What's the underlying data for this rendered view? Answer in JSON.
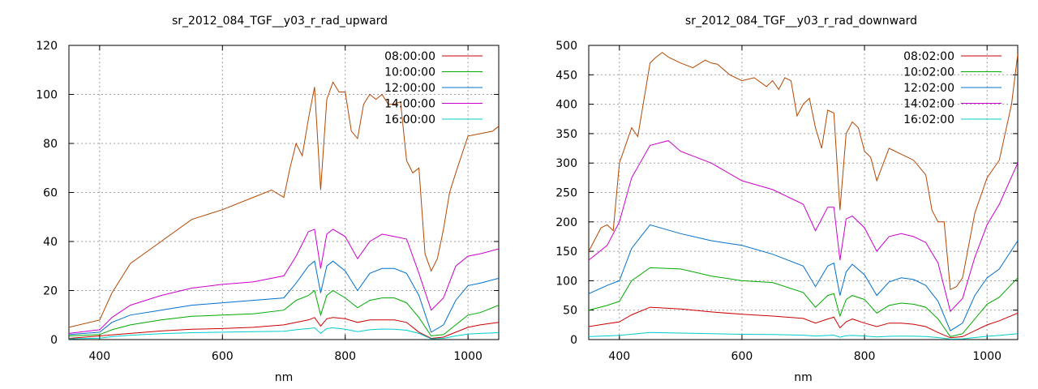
{
  "chart_data": [
    {
      "type": "line",
      "title": "sr_2012_084_TGF__y03_r_rad_upward",
      "xlabel": "nm",
      "ylabel": "",
      "xlim": [
        350,
        1050
      ],
      "ylim": [
        0,
        120
      ],
      "xticks": [
        400,
        600,
        800,
        1000
      ],
      "yticks": [
        0,
        20,
        40,
        60,
        80,
        100,
        120
      ],
      "grid": true,
      "legend_position": "top-right",
      "series": [
        {
          "name": "08:00:00",
          "color": "#cc0000",
          "x": [
            350,
            400,
            450,
            500,
            550,
            600,
            650,
            700,
            720,
            740,
            750,
            760,
            770,
            780,
            800,
            820,
            840,
            860,
            880,
            900,
            920,
            940,
            960,
            980,
            1000,
            1020,
            1050
          ],
          "y": [
            0.5,
            1.5,
            2.5,
            3.5,
            4.2,
            4.5,
            5,
            6,
            7,
            8,
            9,
            5.5,
            8.5,
            9,
            8.5,
            7,
            8,
            8,
            8,
            7,
            3,
            0.5,
            1,
            3,
            5,
            6,
            7
          ]
        },
        {
          "name": "10:00:00",
          "color": "#00aa00",
          "x": [
            350,
            400,
            420,
            450,
            500,
            550,
            600,
            650,
            700,
            720,
            740,
            750,
            760,
            770,
            780,
            800,
            820,
            840,
            860,
            880,
            900,
            920,
            940,
            960,
            980,
            1000,
            1020,
            1050
          ],
          "y": [
            1.5,
            2,
            4,
            6,
            8,
            9.5,
            10,
            10.5,
            12,
            16,
            18,
            20,
            10,
            18,
            20,
            17,
            13,
            16,
            17,
            17,
            15,
            9,
            1.5,
            2,
            6,
            10,
            11,
            14
          ]
        },
        {
          "name": "12:00:00",
          "color": "#0070cc",
          "x": [
            350,
            400,
            420,
            450,
            500,
            550,
            600,
            650,
            700,
            720,
            740,
            750,
            760,
            770,
            780,
            800,
            820,
            840,
            860,
            880,
            900,
            920,
            940,
            960,
            980,
            1000,
            1020,
            1050
          ],
          "y": [
            2,
            3,
            7,
            10,
            12,
            14,
            15,
            16,
            17,
            23,
            30,
            32,
            19,
            30,
            32,
            28,
            20,
            27,
            29,
            29,
            27,
            18,
            3,
            6,
            16,
            22,
            23,
            25
          ]
        },
        {
          "name": "14:00:00",
          "color": "#cc00cc",
          "x": [
            350,
            400,
            420,
            450,
            500,
            550,
            600,
            650,
            700,
            720,
            740,
            750,
            760,
            770,
            780,
            800,
            820,
            840,
            860,
            880,
            900,
            920,
            940,
            960,
            980,
            1000,
            1020,
            1050
          ],
          "y": [
            2.5,
            4,
            9,
            14,
            18,
            21,
            22.5,
            23.5,
            26,
            34,
            44,
            45,
            29,
            43,
            45,
            42,
            33,
            40,
            43,
            42,
            41,
            27,
            12,
            17,
            30,
            34,
            35,
            37
          ]
        },
        {
          "name": "16:00:00",
          "color": "#00cccc",
          "x": [
            350,
            400,
            420,
            450,
            500,
            550,
            600,
            650,
            700,
            720,
            740,
            750,
            760,
            770,
            780,
            800,
            820,
            840,
            860,
            880,
            900,
            920,
            940,
            960,
            980,
            1000,
            1020,
            1050
          ],
          "y": [
            0.3,
            0.6,
            1.2,
            1.8,
            2.4,
            2.8,
            3,
            3.2,
            3.4,
            4,
            4.5,
            4.8,
            2.5,
            4.5,
            4.8,
            4.2,
            3.2,
            4,
            4.3,
            4.2,
            3.8,
            2.5,
            0.3,
            0.5,
            1.5,
            2.2,
            2.5,
            2.8
          ]
        },
        {
          "name": "",
          "color": "#b34700",
          "x": [
            350,
            400,
            420,
            450,
            500,
            550,
            600,
            650,
            680,
            700,
            710,
            720,
            730,
            740,
            750,
            760,
            770,
            780,
            790,
            800,
            810,
            820,
            830,
            840,
            850,
            860,
            870,
            880,
            890,
            900,
            910,
            920,
            930,
            940,
            950,
            960,
            970,
            980,
            1000,
            1020,
            1040,
            1050
          ],
          "y": [
            5,
            8,
            19,
            31,
            40,
            49,
            53,
            58,
            61,
            58,
            70,
            80,
            75,
            90,
            103,
            61,
            98,
            105,
            101,
            101,
            85,
            82,
            96,
            100,
            98,
            100,
            96,
            96,
            97,
            73,
            68,
            70,
            35,
            28,
            33,
            45,
            60,
            68,
            83,
            84,
            85,
            87
          ]
        }
      ]
    },
    {
      "type": "line",
      "title": "sr_2012_084_TGF__y03_r_rad_downward",
      "xlabel": "nm",
      "ylabel": "",
      "xlim": [
        350,
        1050
      ],
      "ylim": [
        0,
        500
      ],
      "xticks": [
        400,
        600,
        800,
        1000
      ],
      "yticks": [
        0,
        50,
        100,
        150,
        200,
        250,
        300,
        350,
        400,
        450,
        500
      ],
      "grid": true,
      "legend_position": "top-right",
      "series": [
        {
          "name": "08:02:00",
          "color": "#cc0000",
          "x": [
            350,
            380,
            400,
            420,
            450,
            500,
            550,
            600,
            650,
            700,
            720,
            740,
            750,
            760,
            770,
            780,
            800,
            820,
            840,
            860,
            880,
            900,
            920,
            940,
            960,
            980,
            1000,
            1020,
            1050
          ],
          "y": [
            22,
            27,
            30,
            42,
            55,
            52,
            47,
            43,
            40,
            36,
            28,
            35,
            38,
            20,
            30,
            35,
            28,
            22,
            28,
            28,
            26,
            22,
            12,
            3,
            5,
            15,
            25,
            32,
            45
          ]
        },
        {
          "name": "10:02:00",
          "color": "#00aa00",
          "x": [
            350,
            380,
            400,
            420,
            450,
            500,
            550,
            600,
            650,
            700,
            720,
            740,
            750,
            760,
            770,
            780,
            800,
            820,
            840,
            860,
            880,
            900,
            920,
            940,
            960,
            980,
            1000,
            1020,
            1050
          ],
          "y": [
            50,
            58,
            65,
            100,
            122,
            120,
            108,
            100,
            97,
            80,
            55,
            75,
            78,
            40,
            68,
            75,
            68,
            45,
            58,
            62,
            60,
            55,
            35,
            5,
            10,
            35,
            60,
            72,
            105
          ]
        },
        {
          "name": "12:02:00",
          "color": "#0070cc",
          "x": [
            350,
            380,
            400,
            420,
            450,
            500,
            550,
            600,
            650,
            700,
            720,
            740,
            750,
            760,
            770,
            780,
            800,
            820,
            840,
            860,
            880,
            900,
            920,
            940,
            960,
            980,
            1000,
            1020,
            1050
          ],
          "y": [
            78,
            92,
            100,
            155,
            195,
            180,
            168,
            160,
            145,
            125,
            90,
            125,
            130,
            75,
            115,
            128,
            110,
            75,
            98,
            105,
            102,
            92,
            65,
            15,
            28,
            75,
            105,
            120,
            168
          ]
        },
        {
          "name": "14:02:00",
          "color": "#cc00cc",
          "x": [
            350,
            380,
            400,
            420,
            450,
            480,
            500,
            550,
            600,
            650,
            700,
            720,
            740,
            750,
            760,
            770,
            780,
            800,
            820,
            840,
            860,
            880,
            900,
            920,
            940,
            960,
            980,
            1000,
            1020,
            1050
          ],
          "y": [
            135,
            160,
            200,
            275,
            330,
            338,
            320,
            300,
            270,
            255,
            230,
            185,
            225,
            225,
            135,
            205,
            210,
            190,
            150,
            175,
            180,
            175,
            165,
            130,
            48,
            70,
            140,
            195,
            230,
            300
          ]
        },
        {
          "name": "16:02:00",
          "color": "#00cccc",
          "x": [
            350,
            400,
            450,
            500,
            550,
            600,
            650,
            700,
            720,
            740,
            750,
            760,
            770,
            780,
            800,
            820,
            840,
            860,
            880,
            900,
            920,
            940,
            960,
            980,
            1000,
            1020,
            1050
          ],
          "y": [
            5,
            7,
            12,
            11,
            10,
            9,
            8.5,
            7.5,
            6,
            7,
            7.5,
            4,
            6.5,
            7,
            6,
            4.5,
            5.5,
            5.8,
            5.6,
            5.2,
            3.5,
            0.8,
            1.2,
            3.5,
            5.5,
            7,
            10
          ]
        },
        {
          "name": "",
          "color": "#b34700",
          "x": [
            350,
            370,
            380,
            390,
            400,
            420,
            430,
            450,
            460,
            470,
            480,
            500,
            520,
            540,
            550,
            560,
            580,
            600,
            620,
            640,
            650,
            660,
            670,
            680,
            690,
            700,
            710,
            720,
            730,
            740,
            750,
            760,
            770,
            780,
            790,
            800,
            810,
            820,
            840,
            860,
            880,
            900,
            910,
            920,
            930,
            940,
            950,
            960,
            980,
            1000,
            1020,
            1040,
            1050
          ],
          "y": [
            150,
            190,
            195,
            185,
            300,
            360,
            345,
            470,
            480,
            488,
            480,
            470,
            462,
            475,
            470,
            468,
            450,
            440,
            445,
            430,
            440,
            425,
            445,
            440,
            380,
            400,
            410,
            360,
            325,
            390,
            385,
            220,
            350,
            370,
            360,
            320,
            310,
            270,
            325,
            315,
            305,
            280,
            220,
            200,
            200,
            85,
            90,
            105,
            215,
            275,
            305,
            400,
            485
          ]
        }
      ]
    }
  ]
}
